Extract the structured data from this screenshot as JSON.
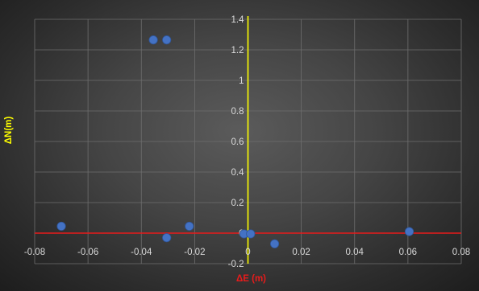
{
  "chart_data": {
    "type": "scatter",
    "title": "",
    "xlabel": "ΔE (m)",
    "ylabel": "ΔN(m)",
    "xlim": [
      -0.08,
      0.08
    ],
    "ylim": [
      -0.2,
      1.4
    ],
    "x_ticks": [
      -0.08,
      -0.06,
      -0.04,
      -0.02,
      0,
      0.02,
      0.04,
      0.06,
      0.08
    ],
    "x_tick_labels": [
      "-0.08",
      "-0.06",
      "-0.04",
      "-0.02",
      "0",
      "0.02",
      "0.04",
      "0.06",
      "0.08"
    ],
    "y_ticks": [
      -0.2,
      0,
      0.2,
      0.4,
      0.6,
      0.8,
      1,
      1.2,
      1.4
    ],
    "y_tick_labels": [
      "-0.2",
      "0",
      "0.2",
      "0.4",
      "0.6",
      "0.8",
      "1",
      "1.2",
      "1.4"
    ],
    "grid": true,
    "legend": "none",
    "series": [
      {
        "points": [
          {
            "x": -0.0355,
            "y": 1.265
          },
          {
            "x": -0.0305,
            "y": 1.265
          },
          {
            "x": -0.07,
            "y": 0.045
          },
          {
            "x": -0.0305,
            "y": -0.03
          },
          {
            "x": -0.022,
            "y": 0.045
          },
          {
            "x": -0.0015,
            "y": -0.005
          },
          {
            "x": 0.001,
            "y": -0.005
          },
          {
            "x": 0.01,
            "y": -0.07
          },
          {
            "x": 0.0605,
            "y": 0.01
          }
        ]
      }
    ],
    "colors": {
      "point": "#4472c4",
      "point_stroke": "#2f5597",
      "x_zero_line": "#e81b1b",
      "y_zero_line": "#ffff00",
      "grid": "#6e6e6e",
      "ylabel_color": "#ffff00",
      "xlabel_color": "#e81b1b"
    }
  }
}
